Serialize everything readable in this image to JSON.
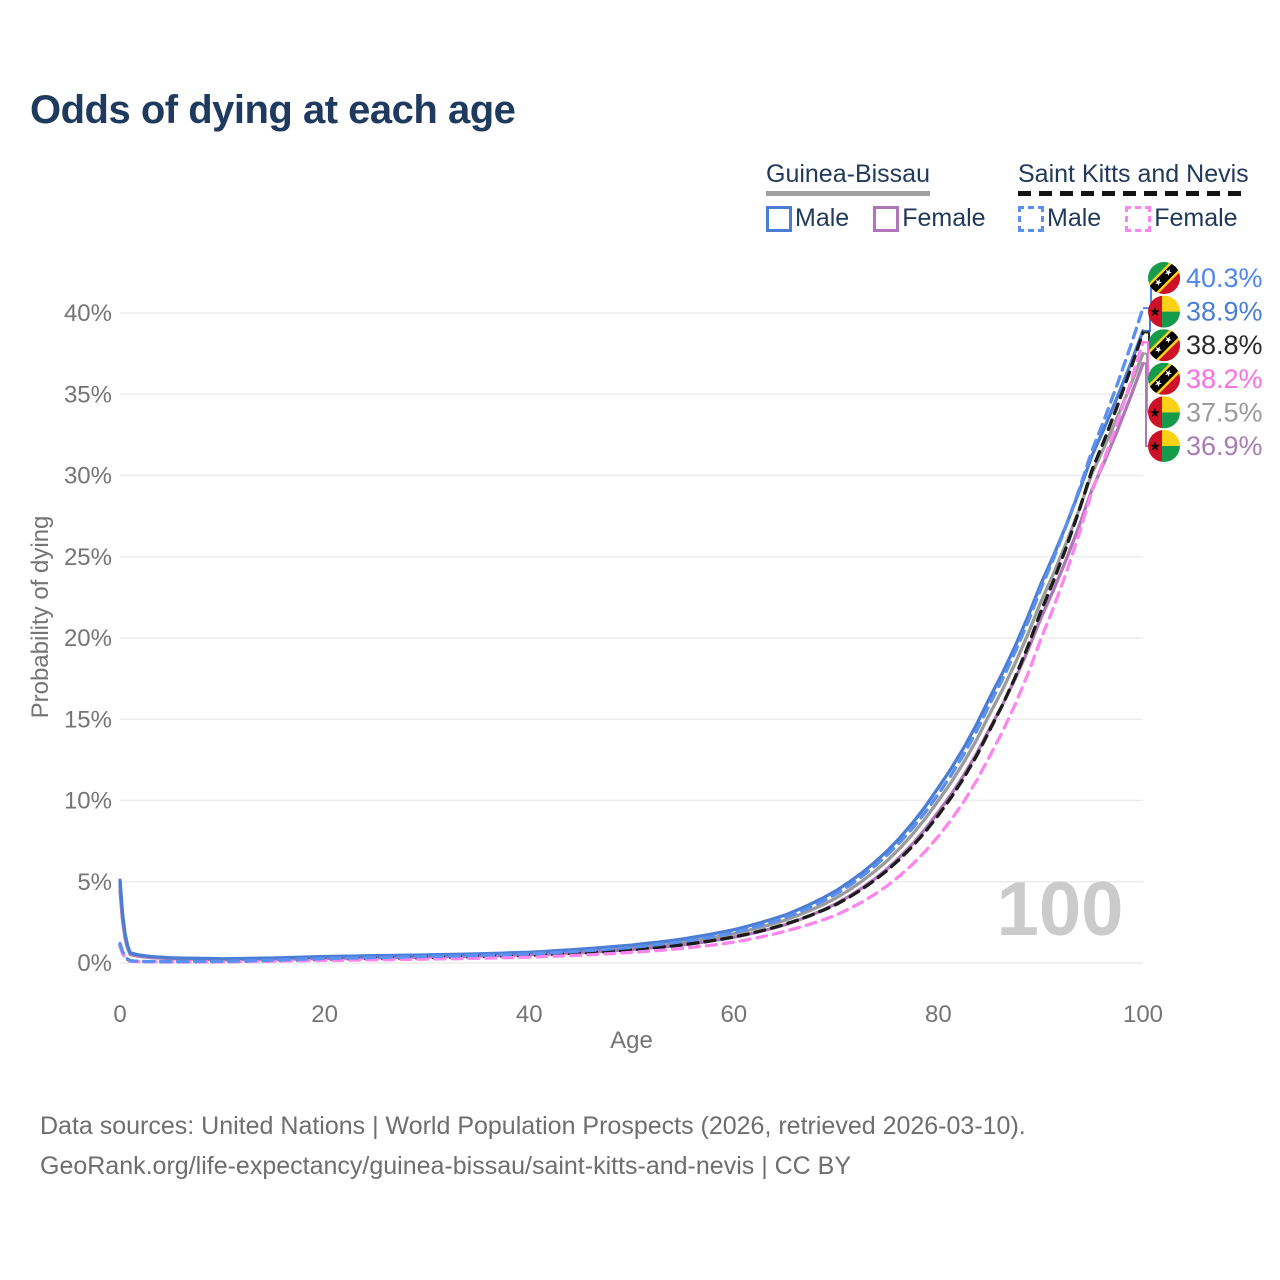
{
  "title": "Odds of dying at each age",
  "legend": {
    "groups": [
      {
        "name": "Guinea-Bissau",
        "line_style": "solid",
        "underline_color": "#a0a0a0",
        "items": [
          {
            "label": "Male",
            "color": "#4a7dd3"
          },
          {
            "label": "Female",
            "color": "#b077b8"
          }
        ]
      },
      {
        "name": "Saint Kitts and Nevis",
        "line_style": "dashed",
        "underline_color": "#141414",
        "items": [
          {
            "label": "Male",
            "color": "#5b8ff0"
          },
          {
            "label": "Female",
            "color": "#fb86ec"
          }
        ]
      }
    ]
  },
  "chart_data": {
    "type": "line",
    "xlabel": "Age",
    "ylabel": "Probability of dying",
    "xlim": [
      0,
      100
    ],
    "ylim": [
      0,
      40
    ],
    "xticks": [
      0,
      20,
      40,
      60,
      80,
      100
    ],
    "yticks": [
      "0%",
      "5%",
      "10%",
      "15%",
      "20%",
      "25%",
      "30%",
      "35%",
      "40%"
    ],
    "grid": "horizontal",
    "watermark_age": "100",
    "x": [
      0,
      1,
      2,
      3,
      5,
      10,
      15,
      20,
      25,
      30,
      35,
      40,
      45,
      50,
      55,
      60,
      65,
      70,
      75,
      80,
      85,
      90,
      95,
      100
    ],
    "series": [
      {
        "key": "gb_total",
        "country": "Guinea-Bissau",
        "sex": "Both",
        "color": "#9b9b9b",
        "dashed": false,
        "values": [
          4.75,
          0.57,
          0.44,
          0.37,
          0.29,
          0.23,
          0.27,
          0.34,
          0.39,
          0.44,
          0.49,
          0.58,
          0.74,
          0.96,
          1.29,
          1.8,
          2.63,
          4.0,
          6.3,
          10.0,
          15.3,
          22.2,
          30.1,
          37.5
        ]
      },
      {
        "key": "gb_female",
        "country": "Guinea-Bissau",
        "sex": "Female",
        "color": "#b077b8",
        "dashed": false,
        "values": [
          4.4,
          0.52,
          0.4,
          0.34,
          0.27,
          0.21,
          0.23,
          0.28,
          0.32,
          0.37,
          0.43,
          0.51,
          0.64,
          0.83,
          1.11,
          1.58,
          2.35,
          3.65,
          5.8,
          9.3,
          14.4,
          21.2,
          29.1,
          36.9
        ]
      },
      {
        "key": "gb_male",
        "country": "Guinea-Bissau",
        "sex": "Male",
        "color": "#4a7dd3",
        "dashed": false,
        "values": [
          5.1,
          0.62,
          0.48,
          0.4,
          0.32,
          0.26,
          0.31,
          0.4,
          0.45,
          0.5,
          0.56,
          0.66,
          0.85,
          1.1,
          1.48,
          2.05,
          2.95,
          4.45,
          6.9,
          10.8,
          16.3,
          23.3,
          31.2,
          38.9
        ]
      },
      {
        "key": "skn_total",
        "country": "Saint Kitts and Nevis",
        "sex": "Both",
        "color": "#1c1c1c",
        "dashed": true,
        "values": [
          1.1,
          0.12,
          0.09,
          0.08,
          0.07,
          0.08,
          0.14,
          0.22,
          0.27,
          0.32,
          0.38,
          0.46,
          0.61,
          0.81,
          1.12,
          1.6,
          2.38,
          3.6,
          5.7,
          9.1,
          14.3,
          21.6,
          30.3,
          38.8
        ]
      },
      {
        "key": "skn_female",
        "country": "Saint Kitts and Nevis",
        "sex": "Female",
        "color": "#fb86ec",
        "dashed": true,
        "values": [
          1.0,
          0.11,
          0.08,
          0.07,
          0.06,
          0.07,
          0.11,
          0.16,
          0.2,
          0.24,
          0.29,
          0.36,
          0.48,
          0.65,
          0.9,
          1.28,
          1.95,
          2.95,
          4.75,
          7.8,
          12.7,
          19.9,
          29.0,
          38.2
        ]
      },
      {
        "key": "skn_male",
        "country": "Saint Kitts and Nevis",
        "sex": "Male",
        "color": "#5b8ff0",
        "dashed": true,
        "values": [
          1.2,
          0.14,
          0.1,
          0.09,
          0.08,
          0.1,
          0.18,
          0.28,
          0.34,
          0.4,
          0.47,
          0.56,
          0.73,
          0.96,
          1.32,
          1.88,
          2.78,
          4.25,
          6.65,
          10.4,
          15.9,
          23.0,
          31.5,
          40.3
        ]
      }
    ]
  },
  "end_labels": [
    {
      "value": "40.3%",
      "color": "#4f86ef",
      "flag": "skn",
      "series": "skn_male"
    },
    {
      "value": "38.9%",
      "color": "#4a7dd3",
      "flag": "gb",
      "series": "gb_male"
    },
    {
      "value": "38.8%",
      "color": "#2b2b2b",
      "flag": "skn",
      "series": "skn_total"
    },
    {
      "value": "38.2%",
      "color": "#f970e4",
      "flag": "skn",
      "series": "skn_female"
    },
    {
      "value": "37.5%",
      "color": "#9b9b9b",
      "flag": "gb",
      "series": "gb_total"
    },
    {
      "value": "36.9%",
      "color": "#a87cb4",
      "flag": "gb",
      "series": "gb_female"
    }
  ],
  "flag_colors": {
    "red": "#ce1126",
    "yellow": "#fcd116",
    "green": "#169b4a",
    "black": "#000000"
  },
  "footer": {
    "line1": "Data sources: United Nations | World Population Prospects (2026, retrieved 2026-03-10).",
    "line2": "GeoRank.org/life-expectancy/guinea-bissau/saint-kitts-and-nevis | CC BY"
  }
}
